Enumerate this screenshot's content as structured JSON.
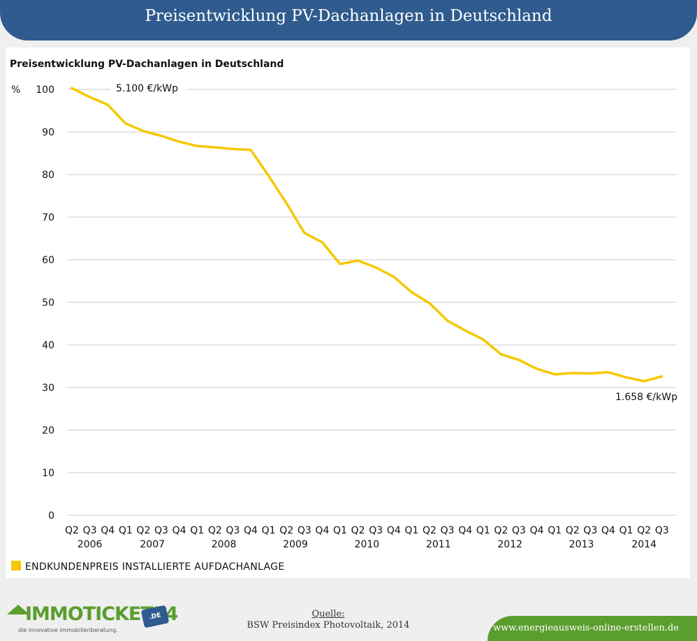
{
  "banner": {
    "title": "Preisentwicklung PV-Dachanlagen in Deutschland"
  },
  "colors": {
    "line": "#f5c800",
    "banner": "#2f5b8e",
    "accent_green": "#5a9e2e",
    "grid": "#c8c8c8"
  },
  "chart_data": {
    "type": "line",
    "title": "Preisentwicklung PV-Dachanlagen in Deutschland",
    "ylabel": "%",
    "ylim": [
      0,
      100
    ],
    "yticks": [
      0,
      10,
      20,
      30,
      40,
      50,
      60,
      70,
      80,
      90,
      100
    ],
    "grid": true,
    "legend_position": "bottom-left",
    "categories": [
      "Q2",
      "Q3",
      "Q4",
      "Q1",
      "Q2",
      "Q3",
      "Q4",
      "Q1",
      "Q2",
      "Q3",
      "Q4",
      "Q1",
      "Q2",
      "Q3",
      "Q4",
      "Q1",
      "Q2",
      "Q3",
      "Q4",
      "Q1",
      "Q2",
      "Q3",
      "Q4",
      "Q1",
      "Q2",
      "Q3",
      "Q4",
      "Q1",
      "Q2",
      "Q3",
      "Q4",
      "Q1",
      "Q2",
      "Q3"
    ],
    "year_labels": [
      {
        "label": "2006",
        "index": 1
      },
      {
        "label": "2007",
        "index": 4.5
      },
      {
        "label": "2008",
        "index": 8.5
      },
      {
        "label": "2009",
        "index": 12.5
      },
      {
        "label": "2010",
        "index": 16.5
      },
      {
        "label": "2011",
        "index": 20.5
      },
      {
        "label": "2012",
        "index": 24.5
      },
      {
        "label": "2013",
        "index": 28.5
      },
      {
        "label": "2014",
        "index": 32
      }
    ],
    "series": [
      {
        "name": "ENDKUNDENPREIS INSTALLIERTE AUFDACHANLAGE",
        "values": [
          100.3,
          98.2,
          96.4,
          92.0,
          90.2,
          89.1,
          87.7,
          86.7,
          86.4,
          86.0,
          85.8,
          79.7,
          73.3,
          66.3,
          64.1,
          59.0,
          59.8,
          58.2,
          56.0,
          52.4,
          49.8,
          45.7,
          43.4,
          41.3,
          37.8,
          36.5,
          34.4,
          33.1,
          33.4,
          33.3,
          33.6,
          32.4,
          31.5,
          32.6
        ]
      }
    ],
    "annotations": [
      {
        "text": "5.100 €/kWp",
        "index": 0
      },
      {
        "text": "1.658 €/kWp",
        "index": 33
      }
    ]
  },
  "footer": {
    "source_label": "Quelle:",
    "source_text": "BSW Preisindex Photovoltaik, 2014",
    "logo_text": "IMMOTICKET24",
    "logo_tagline": "die innovative immobilienberatung.",
    "logo_badge": ".DE",
    "url": "www.energieausweis-online-erstellen.de"
  }
}
